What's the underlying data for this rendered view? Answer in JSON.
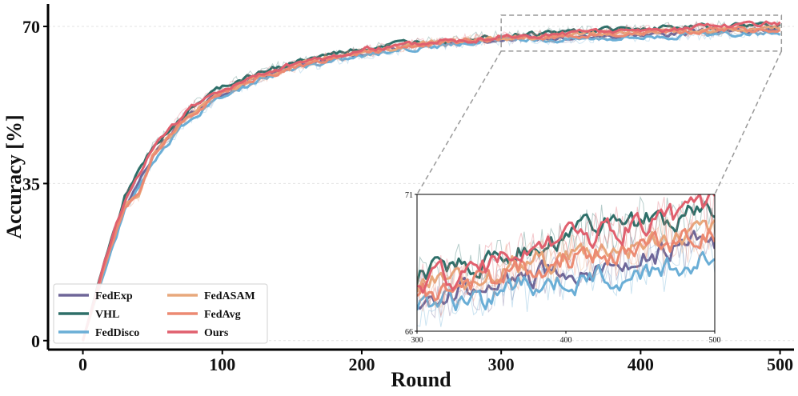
{
  "chart_data": {
    "type": "line",
    "xlabel": "Round",
    "ylabel": "Accuracy [%]",
    "xlim": [
      -25,
      510
    ],
    "ylim": [
      -2,
      75
    ],
    "xticks": [
      0,
      100,
      200,
      300,
      400,
      500
    ],
    "yticks": [
      0,
      35,
      70
    ],
    "grid": "horizontal",
    "legend_placement": "lower-left",
    "series": [
      {
        "name": "FedExp",
        "color": "#6e6698",
        "points": [
          [
            0,
            0
          ],
          [
            15,
            16
          ],
          [
            30,
            30
          ],
          [
            50,
            41
          ],
          [
            75,
            50
          ],
          [
            100,
            55
          ],
          [
            125,
            58.5
          ],
          [
            150,
            61
          ],
          [
            175,
            62.5
          ],
          [
            200,
            64
          ],
          [
            225,
            65.2
          ],
          [
            250,
            66
          ],
          [
            275,
            66.6
          ],
          [
            300,
            67.3
          ],
          [
            325,
            67.3
          ],
          [
            350,
            67.6
          ],
          [
            375,
            67.9
          ],
          [
            400,
            68.2
          ],
          [
            425,
            68.4
          ],
          [
            450,
            68.7
          ],
          [
            475,
            69
          ],
          [
            500,
            69.2
          ]
        ]
      },
      {
        "name": "VHL",
        "color": "#2e6f69",
        "points": [
          [
            0,
            0
          ],
          [
            15,
            17
          ],
          [
            30,
            32
          ],
          [
            50,
            43
          ],
          [
            75,
            51.5
          ],
          [
            100,
            56.5
          ],
          [
            125,
            59.5
          ],
          [
            150,
            62
          ],
          [
            175,
            63.5
          ],
          [
            200,
            65
          ],
          [
            225,
            66
          ],
          [
            250,
            66.9
          ],
          [
            275,
            67.4
          ],
          [
            300,
            68
          ],
          [
            325,
            68.3
          ],
          [
            350,
            68.8
          ],
          [
            375,
            69.2
          ],
          [
            400,
            69.5
          ],
          [
            425,
            69.8
          ],
          [
            450,
            70
          ],
          [
            475,
            70.2
          ],
          [
            500,
            70.4
          ]
        ]
      },
      {
        "name": "FedDisco",
        "color": "#6aaed6",
        "points": [
          [
            0,
            0
          ],
          [
            15,
            15
          ],
          [
            30,
            29
          ],
          [
            50,
            40
          ],
          [
            75,
            49
          ],
          [
            100,
            54.5
          ],
          [
            125,
            58
          ],
          [
            150,
            60.5
          ],
          [
            175,
            62
          ],
          [
            200,
            63.5
          ],
          [
            225,
            64.7
          ],
          [
            250,
            65.6
          ],
          [
            275,
            66.3
          ],
          [
            300,
            67
          ],
          [
            325,
            67
          ],
          [
            350,
            67.3
          ],
          [
            375,
            67.6
          ],
          [
            400,
            67.8
          ],
          [
            425,
            68
          ],
          [
            450,
            68.2
          ],
          [
            475,
            68.4
          ],
          [
            500,
            68.6
          ]
        ]
      },
      {
        "name": "FedASAM",
        "color": "#e8a87c",
        "points": [
          [
            0,
            0
          ],
          [
            15,
            16
          ],
          [
            30,
            30
          ],
          [
            40,
            32
          ],
          [
            50,
            41
          ],
          [
            75,
            50
          ],
          [
            100,
            55.5
          ],
          [
            125,
            58.5
          ],
          [
            150,
            61
          ],
          [
            175,
            62.8
          ],
          [
            200,
            64.2
          ],
          [
            225,
            65.4
          ],
          [
            250,
            66.3
          ],
          [
            275,
            66.9
          ],
          [
            300,
            67.6
          ],
          [
            325,
            67.8
          ],
          [
            350,
            68.2
          ],
          [
            375,
            68.5
          ],
          [
            400,
            68.8
          ],
          [
            425,
            69
          ],
          [
            450,
            69.2
          ],
          [
            475,
            69.4
          ],
          [
            500,
            69.6
          ]
        ]
      },
      {
        "name": "FedAvg",
        "color": "#ec8a72",
        "points": [
          [
            0,
            0
          ],
          [
            15,
            16
          ],
          [
            30,
            30
          ],
          [
            40,
            32
          ],
          [
            50,
            41
          ],
          [
            75,
            50
          ],
          [
            100,
            55.2
          ],
          [
            125,
            58.3
          ],
          [
            150,
            60.8
          ],
          [
            175,
            62.6
          ],
          [
            200,
            64
          ],
          [
            225,
            65.2
          ],
          [
            250,
            66.1
          ],
          [
            275,
            66.8
          ],
          [
            300,
            67.4
          ],
          [
            325,
            67.5
          ],
          [
            350,
            67.9
          ],
          [
            375,
            68.3
          ],
          [
            400,
            68.6
          ],
          [
            425,
            68.8
          ],
          [
            450,
            69.1
          ],
          [
            475,
            69.3
          ],
          [
            500,
            69.5
          ]
        ]
      },
      {
        "name": "Ours",
        "color": "#e0606e",
        "points": [
          [
            0,
            0
          ],
          [
            15,
            17
          ],
          [
            30,
            31.5
          ],
          [
            50,
            42.5
          ],
          [
            75,
            51.5
          ],
          [
            100,
            56
          ],
          [
            125,
            59
          ],
          [
            150,
            61.5
          ],
          [
            175,
            63.2
          ],
          [
            200,
            64.8
          ],
          [
            225,
            65.8
          ],
          [
            250,
            66.6
          ],
          [
            275,
            67.2
          ],
          [
            300,
            67.7
          ],
          [
            325,
            68
          ],
          [
            350,
            68.4
          ],
          [
            375,
            68.9
          ],
          [
            400,
            69.3
          ],
          [
            425,
            69.6
          ],
          [
            450,
            69.9
          ],
          [
            475,
            70.1
          ],
          [
            500,
            70.8
          ]
        ]
      }
    ],
    "inset": {
      "xlim": [
        300,
        500
      ],
      "ylim": [
        66,
        71
      ],
      "xticks": [
        300,
        400,
        500
      ],
      "yticks": [
        66,
        71
      ]
    },
    "legend": [
      {
        "name": "FedExp"
      },
      {
        "name": "VHL"
      },
      {
        "name": "FedDisco"
      },
      {
        "name": "FedASAM"
      },
      {
        "name": "FedAvg"
      },
      {
        "name": "Ours"
      }
    ]
  }
}
